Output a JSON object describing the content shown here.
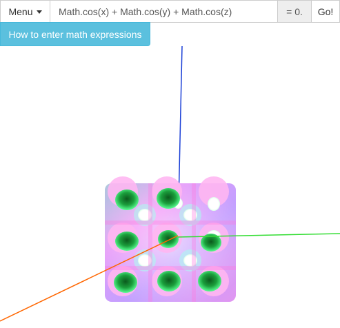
{
  "toolbar": {
    "menu_label": "Menu",
    "expression_value": "Math.cos(x) + Math.cos(y) + Math.cos(z)",
    "equals_label": "= 0.",
    "go_label": "Go!"
  },
  "help": {
    "label": "How to enter math expressions"
  },
  "scene": {
    "surface": "gyroid-like implicit surface",
    "axis_colors": {
      "x": "#ff6600",
      "y": "#33dd33",
      "z": "#1a3fd6"
    }
  }
}
